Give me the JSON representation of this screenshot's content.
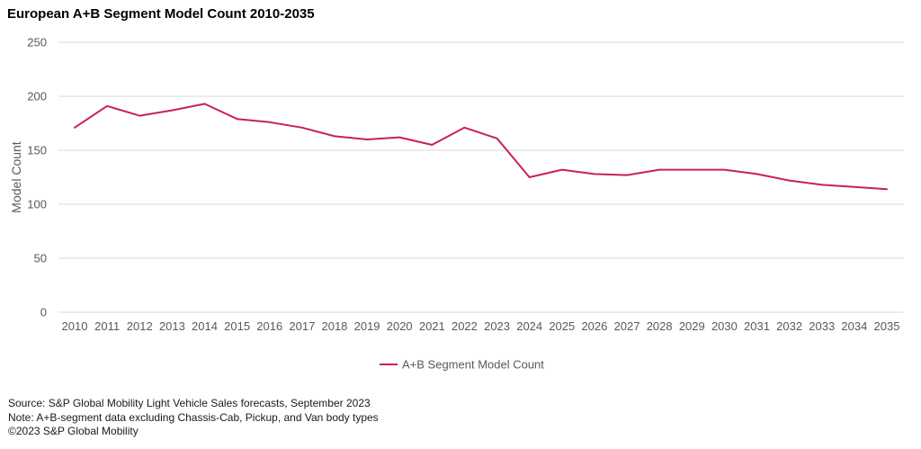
{
  "chart_data": {
    "type": "line",
    "title": "European A+B Segment Model Count 2010-2035",
    "xlabel": "",
    "ylabel": "Model Count",
    "ylim": [
      0,
      250
    ],
    "yticks": [
      0,
      50,
      100,
      150,
      200,
      250
    ],
    "categories": [
      "2010",
      "2011",
      "2012",
      "2013",
      "2014",
      "2015",
      "2016",
      "2017",
      "2018",
      "2019",
      "2020",
      "2021",
      "2022",
      "2023",
      "2024",
      "2025",
      "2026",
      "2027",
      "2028",
      "2029",
      "2030",
      "2031",
      "2032",
      "2033",
      "2034",
      "2035"
    ],
    "series": [
      {
        "name": "A+B Segment Model Count",
        "values": [
          171,
          191,
          182,
          187,
          193,
          179,
          176,
          171,
          163,
          160,
          162,
          155,
          171,
          161,
          125,
          132,
          128,
          127,
          132,
          132,
          132,
          128,
          122,
          118,
          116,
          114
        ],
        "color": "#c8205c"
      }
    ],
    "grid": true,
    "legend": "bottom"
  },
  "footnotes": {
    "source": "Source: S&P Global Mobility Light Vehicle Sales forecasts, September 2023",
    "note": "Note: A+B-segment data excluding Chassis-Cab, Pickup, and Van body types",
    "copyright": "©2023 S&P Global Mobility"
  },
  "colors": {
    "series": "#c8205c",
    "grid": "#d9d9d9",
    "tick_text": "#595959",
    "title": "#000000"
  }
}
